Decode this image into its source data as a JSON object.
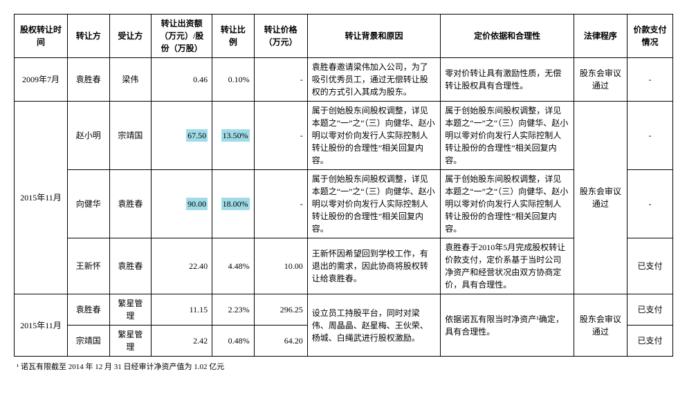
{
  "columns": [
    "股权转让时间",
    "转让方",
    "受让方",
    "转让出资额（万元）/股份（万股）",
    "转让比例",
    "转让价格（万元）",
    "转让背景和原因",
    "定价依据和合理性",
    "法律程序",
    "价款支付情况"
  ],
  "rows": {
    "r1": {
      "time": "2009年7月",
      "from": "袁胜春",
      "to": "梁伟",
      "amount": "0.46",
      "ratio": "0.10%",
      "price": "-",
      "bg": "袁胜春邀请梁伟加入公司，为了吸引优秀员工，通过无偿转让股权的方式引入其成为股东。",
      "basis": "零对价转让具有激励性质，无偿转让股权具有合理性。",
      "legal": "股东会审议通过",
      "pay": "-"
    },
    "r2": {
      "time": "2015年11月",
      "from": "赵小明",
      "to": "宗靖国",
      "amount": "67.50",
      "ratio": "13.50%",
      "price": "-",
      "bg": "属于创始股东间股权调整，详见本题之“一”之“（三）向健华、赵小明以零对价向发行人实际控制人转让股份的合理性”相关回复内容。",
      "basis": "属于创始股东间股权调整，详见本题之“一”之“（三）向健华、赵小明以零对价向发行人实际控制人转让股份的合理性”相关回复内容。",
      "legal": "股东会审议通过",
      "pay": "-"
    },
    "r3": {
      "from": "向健华",
      "to": "袁胜春",
      "amount": "90.00",
      "ratio": "18.00%",
      "price": "-",
      "bg": "属于创始股东间股权调整，详见本题之“一”之“（三）向健华、赵小明以零对价向发行人实际控制人转让股份的合理性”相关回复内容。",
      "basis": "属于创始股东间股权调整，详见本题之“一”之“（三）向健华、赵小明以零对价向发行人实际控制人转让股份的合理性”相关回复内容。",
      "pay": "-"
    },
    "r4": {
      "from": "王新怀",
      "to": "袁胜春",
      "amount": "22.40",
      "ratio": "4.48%",
      "price": "10.00",
      "bg": "王新怀因希望回到学校工作，有退出的需求，因此协商将股权转让给袁胜春。",
      "basis": "袁胜春于2010年5月完成股权转让价款支付，定价系基于当时公司净资产和经营状况由双方协商定价，具有合理性。",
      "pay": "已支付"
    },
    "r5": {
      "time": "2015年11月",
      "from": "袁胜春",
      "to": "繁星管理",
      "amount": "11.15",
      "ratio": "2.23%",
      "price": "296.25",
      "bg": "设立员工持股平台，同时对梁伟、周晶晶、赵星梅、王伙荣、杨城、白绳武进行股权激励。",
      "basis": "依据诺瓦有限当时净资产¹确定，具有合理性。",
      "legal": "股东会审议通过",
      "pay": "已支付"
    },
    "r6": {
      "from": "宗靖国",
      "to": "繁星管理",
      "amount": "2.42",
      "ratio": "0.48%",
      "price": "64.20",
      "pay": "已支付"
    }
  },
  "footnote": "¹ 诺瓦有限截至 2014 年 12 月 31 日经审计净资产值为 1.02 亿元",
  "highlight_color": "#9fdce7"
}
